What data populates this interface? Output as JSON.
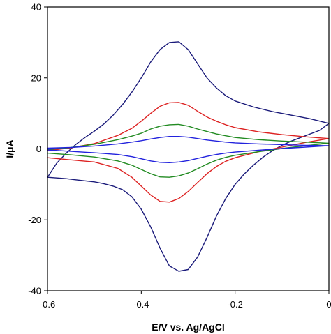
{
  "chart_data": {
    "type": "line",
    "title": "",
    "xlabel": "E/V vs. Ag/AgCl",
    "ylabel": "I/μA",
    "xlim": [
      -0.6,
      0
    ],
    "ylim": [
      -40,
      40
    ],
    "x_ticks": [
      -0.6,
      -0.4,
      -0.2,
      0
    ],
    "x_tick_labels": [
      "-0.6",
      "-0.4",
      "-0.2",
      "0"
    ],
    "y_ticks": [
      -40,
      -20,
      0,
      20,
      40
    ],
    "y_tick_labels": [
      "-40",
      "-20",
      "0",
      "20",
      "40"
    ],
    "grid": false,
    "legend": "none",
    "series": [
      {
        "color": "#1a1a7a",
        "x": [
          -0.6,
          -0.58,
          -0.56,
          -0.54,
          -0.52,
          -0.5,
          -0.48,
          -0.46,
          -0.44,
          -0.42,
          -0.4,
          -0.38,
          -0.36,
          -0.34,
          -0.32,
          -0.3,
          -0.28,
          -0.26,
          -0.24,
          -0.22,
          -0.2,
          -0.16,
          -0.12,
          -0.08,
          -0.04,
          0,
          -0.02,
          -0.04,
          -0.06,
          -0.08,
          -0.1,
          -0.12,
          -0.14,
          -0.16,
          -0.18,
          -0.2,
          -0.22,
          -0.24,
          -0.26,
          -0.28,
          -0.3,
          -0.32,
          -0.34,
          -0.36,
          -0.38,
          -0.4,
          -0.42,
          -0.44,
          -0.46,
          -0.48,
          -0.5,
          -0.52,
          -0.54,
          -0.56,
          -0.58,
          -0.6
        ],
        "y": [
          -8,
          -4,
          -1.2,
          1.2,
          3.2,
          5,
          7,
          9.5,
          12.5,
          16,
          20,
          24.5,
          28,
          30,
          30.2,
          28,
          24,
          20,
          17.2,
          15,
          13.5,
          11.8,
          10.5,
          9.5,
          8.5,
          7.2,
          5.2,
          4.2,
          3.2,
          2.2,
          1,
          -0.5,
          -2.3,
          -4.5,
          -7,
          -10,
          -14,
          -19,
          -25,
          -30.5,
          -34,
          -34.5,
          -33,
          -28,
          -22,
          -17,
          -13.5,
          -11.5,
          -10.5,
          -9.8,
          -9.3,
          -9,
          -8.7,
          -8.4,
          -8.2,
          -8
        ]
      },
      {
        "color": "#dd2222",
        "x": [
          -0.6,
          -0.55,
          -0.5,
          -0.45,
          -0.42,
          -0.4,
          -0.38,
          -0.36,
          -0.34,
          -0.32,
          -0.3,
          -0.28,
          -0.26,
          -0.24,
          -0.22,
          -0.2,
          -0.15,
          -0.1,
          -0.05,
          0,
          -0.05,
          -0.1,
          -0.15,
          -0.2,
          -0.22,
          -0.24,
          -0.26,
          -0.28,
          -0.3,
          -0.32,
          -0.34,
          -0.36,
          -0.38,
          -0.4,
          -0.42,
          -0.45,
          -0.5,
          -0.55,
          -0.6
        ],
        "y": [
          -0.5,
          0.3,
          1.5,
          3.8,
          5.8,
          7.8,
          10,
          12,
          13,
          13.1,
          12.3,
          10.6,
          9,
          7.8,
          6.8,
          6,
          4.8,
          4,
          3.4,
          2.9,
          1.8,
          0.5,
          -0.8,
          -2.5,
          -3.5,
          -5,
          -7,
          -9.5,
          -12,
          -14,
          -15,
          -14.8,
          -13,
          -10.5,
          -8,
          -5.5,
          -3.7,
          -3.1,
          -2.5
        ]
      },
      {
        "color": "#228b22",
        "x": [
          -0.6,
          -0.55,
          -0.5,
          -0.45,
          -0.42,
          -0.4,
          -0.38,
          -0.36,
          -0.34,
          -0.32,
          -0.3,
          -0.28,
          -0.26,
          -0.24,
          -0.22,
          -0.2,
          -0.15,
          -0.1,
          -0.05,
          0,
          -0.05,
          -0.1,
          -0.15,
          -0.2,
          -0.22,
          -0.24,
          -0.26,
          -0.28,
          -0.3,
          -0.32,
          -0.34,
          -0.36,
          -0.38,
          -0.4,
          -0.42,
          -0.45,
          -0.5,
          -0.55,
          -0.6
        ],
        "y": [
          -0.2,
          0.4,
          1.3,
          2.6,
          3.6,
          4.4,
          5.6,
          6.4,
          6.8,
          6.9,
          6.4,
          5.6,
          4.9,
          4.2,
          3.7,
          3.2,
          2.6,
          2.2,
          1.9,
          1.6,
          0.9,
          0.1,
          -0.8,
          -1.8,
          -2.4,
          -3.2,
          -4.3,
          -5.6,
          -6.8,
          -7.6,
          -8,
          -7.9,
          -7,
          -5.8,
          -4.6,
          -3.4,
          -2.3,
          -1.7,
          -1.2
        ]
      },
      {
        "color": "#2222dd",
        "x": [
          -0.6,
          -0.55,
          -0.5,
          -0.45,
          -0.42,
          -0.4,
          -0.38,
          -0.36,
          -0.34,
          -0.32,
          -0.3,
          -0.28,
          -0.26,
          -0.24,
          -0.22,
          -0.2,
          -0.15,
          -0.1,
          -0.05,
          0,
          -0.05,
          -0.1,
          -0.15,
          -0.2,
          -0.22,
          -0.24,
          -0.26,
          -0.28,
          -0.3,
          -0.32,
          -0.34,
          -0.36,
          -0.38,
          -0.4,
          -0.42,
          -0.45,
          -0.5,
          -0.55,
          -0.6
        ],
        "y": [
          0.2,
          0.4,
          0.8,
          1.4,
          1.9,
          2.3,
          2.8,
          3.2,
          3.5,
          3.5,
          3.3,
          2.9,
          2.5,
          2.2,
          1.9,
          1.7,
          1.4,
          1.2,
          1,
          0.9,
          0.5,
          0.1,
          -0.4,
          -0.9,
          -1.2,
          -1.6,
          -2.1,
          -2.7,
          -3.3,
          -3.7,
          -3.9,
          -3.8,
          -3.4,
          -2.8,
          -2.2,
          -1.6,
          -1.1,
          -0.7,
          -0.3
        ]
      }
    ]
  }
}
